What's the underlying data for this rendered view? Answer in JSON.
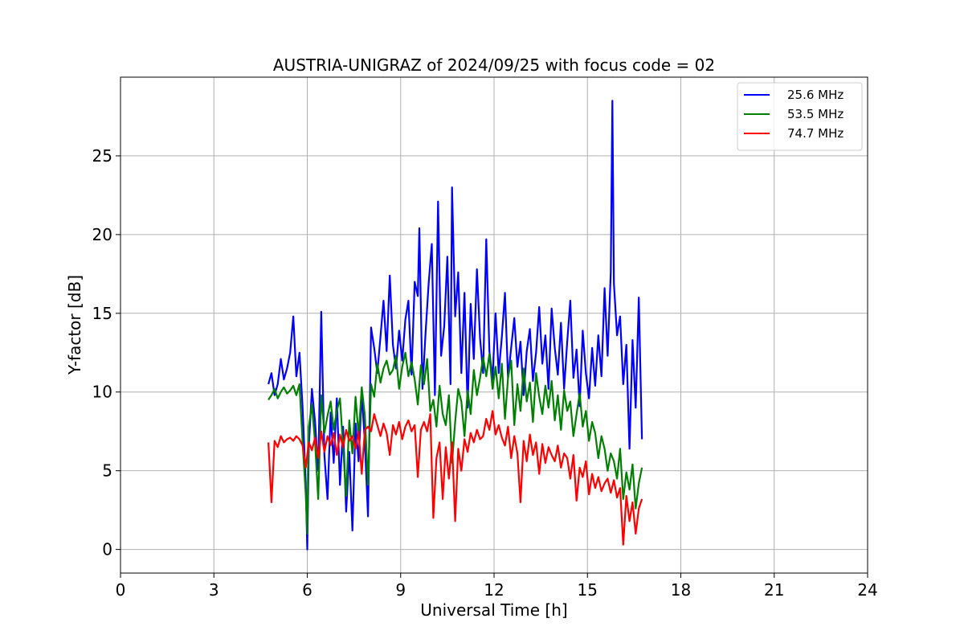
{
  "chart_data": {
    "type": "line",
    "title": "AUSTRIA-UNIGRAZ of 2024/09/25 with focus code = 02",
    "xlabel": "Universal Time [h]",
    "ylabel": "Y-factor [dB]",
    "xlim": [
      0,
      24
    ],
    "ylim": [
      -1.5,
      30
    ],
    "xticks": [
      0,
      3,
      6,
      9,
      12,
      15,
      18,
      21,
      24
    ],
    "yticks": [
      0,
      5,
      10,
      15,
      20,
      25
    ],
    "grid": true,
    "legend_position": "top-right",
    "series": [
      {
        "name": "25.6 MHz",
        "color": "#0000ff",
        "x": [
          4.75,
          4.85,
          4.95,
          5.05,
          5.15,
          5.25,
          5.35,
          5.45,
          5.55,
          5.65,
          5.75,
          5.85,
          5.95,
          6.0,
          6.05,
          6.15,
          6.25,
          6.35,
          6.45,
          6.55,
          6.65,
          6.75,
          6.85,
          6.95,
          7.05,
          7.15,
          7.25,
          7.35,
          7.45,
          7.55,
          7.65,
          7.75,
          7.85,
          7.95,
          8.05,
          8.15,
          8.25,
          8.35,
          8.45,
          8.55,
          8.65,
          8.75,
          8.85,
          8.95,
          9.05,
          9.15,
          9.25,
          9.35,
          9.45,
          9.55,
          9.6,
          9.7,
          9.8,
          9.9,
          10.0,
          10.1,
          10.2,
          10.3,
          10.4,
          10.5,
          10.6,
          10.65,
          10.75,
          10.85,
          10.95,
          11.05,
          11.15,
          11.25,
          11.35,
          11.45,
          11.55,
          11.65,
          11.75,
          11.85,
          11.95,
          12.05,
          12.15,
          12.25,
          12.35,
          12.45,
          12.55,
          12.65,
          12.75,
          12.85,
          12.95,
          13.05,
          13.15,
          13.25,
          13.35,
          13.45,
          13.55,
          13.65,
          13.75,
          13.85,
          13.95,
          14.05,
          14.15,
          14.25,
          14.35,
          14.45,
          14.55,
          14.65,
          14.75,
          14.85,
          14.95,
          15.05,
          15.15,
          15.25,
          15.35,
          15.45,
          15.55,
          15.65,
          15.75,
          15.8,
          15.85,
          15.95,
          16.05,
          16.15,
          16.25,
          16.35,
          16.45,
          16.55,
          16.65,
          16.75
        ],
        "y": [
          10.5,
          11.2,
          9.8,
          10.5,
          12.1,
          10.8,
          11.5,
          12.5,
          14.8,
          11.0,
          12.5,
          9.0,
          4.2,
          0.0,
          6.5,
          10.2,
          8.1,
          5.0,
          15.1,
          6.0,
          3.2,
          8.7,
          5.5,
          9.6,
          4.1,
          7.8,
          2.4,
          6.2,
          1.2,
          8.0,
          5.6,
          9.9,
          6.8,
          2.1,
          14.1,
          12.8,
          11.2,
          13.5,
          15.8,
          12.6,
          17.4,
          13.0,
          11.5,
          13.9,
          12.0,
          14.6,
          15.8,
          11.1,
          17.0,
          16.1,
          20.4,
          10.2,
          13.8,
          16.9,
          19.4,
          9.8,
          22.1,
          12.3,
          14.2,
          18.6,
          10.5,
          23.0,
          14.8,
          17.6,
          11.2,
          16.3,
          9.0,
          15.6,
          12.1,
          17.8,
          13.4,
          11.2,
          19.7,
          12.6,
          10.8,
          15.0,
          11.2,
          13.5,
          16.3,
          10.9,
          12.8,
          14.7,
          11.6,
          13.2,
          9.8,
          12.6,
          14.0,
          10.7,
          12.5,
          15.4,
          11.8,
          13.6,
          10.2,
          15.3,
          12.8,
          11.1,
          14.4,
          10.2,
          13.2,
          15.8,
          10.9,
          12.7,
          9.1,
          13.9,
          11.2,
          9.6,
          12.8,
          10.4,
          13.6,
          11.0,
          16.6,
          12.3,
          17.6,
          28.5,
          16.9,
          13.6,
          14.8,
          10.5,
          13.0,
          6.4,
          13.3,
          9.0,
          16.0,
          7.0
        ],
        "lw": 2.2
      },
      {
        "name": "53.5 MHz",
        "color": "#008000",
        "x": [
          4.75,
          4.85,
          4.95,
          5.05,
          5.15,
          5.25,
          5.35,
          5.45,
          5.55,
          5.65,
          5.75,
          5.85,
          5.95,
          6.0,
          6.05,
          6.15,
          6.25,
          6.35,
          6.45,
          6.55,
          6.65,
          6.75,
          6.85,
          6.95,
          7.05,
          7.15,
          7.25,
          7.35,
          7.45,
          7.55,
          7.65,
          7.75,
          7.85,
          7.95,
          8.05,
          8.15,
          8.25,
          8.35,
          8.45,
          8.55,
          8.65,
          8.75,
          8.85,
          8.95,
          9.05,
          9.15,
          9.25,
          9.35,
          9.45,
          9.55,
          9.65,
          9.75,
          9.85,
          9.95,
          10.05,
          10.15,
          10.25,
          10.35,
          10.45,
          10.55,
          10.65,
          10.75,
          10.85,
          10.95,
          11.05,
          11.15,
          11.25,
          11.35,
          11.45,
          11.55,
          11.65,
          11.75,
          11.85,
          11.95,
          12.05,
          12.15,
          12.25,
          12.35,
          12.45,
          12.55,
          12.65,
          12.75,
          12.85,
          12.95,
          13.05,
          13.15,
          13.25,
          13.35,
          13.45,
          13.55,
          13.65,
          13.75,
          13.85,
          13.95,
          14.05,
          14.15,
          14.25,
          14.35,
          14.45,
          14.55,
          14.65,
          14.75,
          14.85,
          14.95,
          15.05,
          15.15,
          15.25,
          15.35,
          15.45,
          15.55,
          15.65,
          15.75,
          15.85,
          15.95,
          16.05,
          16.15,
          16.25,
          16.35,
          16.45,
          16.55,
          16.65,
          16.75
        ],
        "y": [
          9.5,
          9.8,
          10.2,
          9.6,
          10.0,
          10.3,
          9.9,
          10.1,
          10.4,
          9.8,
          10.5,
          6.8,
          3.5,
          1.0,
          7.8,
          9.2,
          6.8,
          3.2,
          9.8,
          7.4,
          8.5,
          9.4,
          7.6,
          8.8,
          9.6,
          6.5,
          3.4,
          8.2,
          6.1,
          9.7,
          7.2,
          10.3,
          8.5,
          4.1,
          10.5,
          9.7,
          11.8,
          10.6,
          11.5,
          12.0,
          11.1,
          11.4,
          12.3,
          10.2,
          11.6,
          12.5,
          11.0,
          11.9,
          10.8,
          9.2,
          11.7,
          10.5,
          12.1,
          8.8,
          9.5,
          7.8,
          10.4,
          8.6,
          7.9,
          9.8,
          5.5,
          8.1,
          10.2,
          9.4,
          7.2,
          10.1,
          8.6,
          11.4,
          9.8,
          10.9,
          12.2,
          11.0,
          12.4,
          10.2,
          11.6,
          9.6,
          11.8,
          8.3,
          10.9,
          12.0,
          7.9,
          10.5,
          8.8,
          11.5,
          9.4,
          10.6,
          8.1,
          11.2,
          9.7,
          8.6,
          10.4,
          9.0,
          10.7,
          8.2,
          9.8,
          7.6,
          10.1,
          8.8,
          9.4,
          7.2,
          8.6,
          9.9,
          7.8,
          8.8,
          6.9,
          8.1,
          7.4,
          5.8,
          7.2,
          6.4,
          5.0,
          6.1,
          5.6,
          4.5,
          6.4,
          3.2,
          4.9,
          3.8,
          5.4,
          2.6,
          4.2,
          5.2
        ],
        "lw": 2.2
      },
      {
        "name": "74.7 MHz",
        "color": "#ff0000",
        "x": [
          4.75,
          4.85,
          4.95,
          5.05,
          5.15,
          5.25,
          5.35,
          5.45,
          5.55,
          5.65,
          5.75,
          5.85,
          5.95,
          6.05,
          6.15,
          6.25,
          6.35,
          6.45,
          6.55,
          6.65,
          6.75,
          6.85,
          6.95,
          7.05,
          7.15,
          7.25,
          7.35,
          7.45,
          7.55,
          7.65,
          7.75,
          7.85,
          7.95,
          8.05,
          8.15,
          8.25,
          8.35,
          8.45,
          8.55,
          8.65,
          8.75,
          8.85,
          8.95,
          9.05,
          9.15,
          9.25,
          9.35,
          9.45,
          9.55,
          9.65,
          9.75,
          9.85,
          9.95,
          10.05,
          10.15,
          10.25,
          10.35,
          10.45,
          10.55,
          10.65,
          10.75,
          10.85,
          10.95,
          11.05,
          11.15,
          11.25,
          11.35,
          11.45,
          11.55,
          11.65,
          11.75,
          11.85,
          11.95,
          12.05,
          12.15,
          12.25,
          12.35,
          12.45,
          12.55,
          12.65,
          12.75,
          12.85,
          12.95,
          13.05,
          13.15,
          13.25,
          13.35,
          13.45,
          13.55,
          13.65,
          13.75,
          13.85,
          13.95,
          14.05,
          14.15,
          14.25,
          14.35,
          14.45,
          14.55,
          14.65,
          14.75,
          14.85,
          14.95,
          15.05,
          15.15,
          15.25,
          15.35,
          15.45,
          15.55,
          15.65,
          15.75,
          15.85,
          15.95,
          16.05,
          16.15,
          16.25,
          16.35,
          16.45,
          16.55,
          16.65,
          16.75
        ],
        "y": [
          6.8,
          3.0,
          6.9,
          6.5,
          7.2,
          6.8,
          7.0,
          7.1,
          6.9,
          7.2,
          7.0,
          6.6,
          5.2,
          6.8,
          6.3,
          7.1,
          5.8,
          7.5,
          6.2,
          7.2,
          6.6,
          7.4,
          6.0,
          7.3,
          6.5,
          7.6,
          6.9,
          7.2,
          6.4,
          7.5,
          4.8,
          7.6,
          7.8,
          7.5,
          8.6,
          7.9,
          7.2,
          8.0,
          7.4,
          6.0,
          7.9,
          7.3,
          8.1,
          7.0,
          7.8,
          8.2,
          7.5,
          7.9,
          4.6,
          7.6,
          8.1,
          7.5,
          8.6,
          2.0,
          5.8,
          6.8,
          3.2,
          6.5,
          4.5,
          6.8,
          1.8,
          6.4,
          5.0,
          7.0,
          6.2,
          7.4,
          6.8,
          7.6,
          7.0,
          7.2,
          8.3,
          7.6,
          8.8,
          7.3,
          7.9,
          7.1,
          6.6,
          7.8,
          5.8,
          7.2,
          6.1,
          3.0,
          6.9,
          5.6,
          7.3,
          6.0,
          6.8,
          4.8,
          6.7,
          5.5,
          6.5,
          6.0,
          5.6,
          6.6,
          5.2,
          6.1,
          5.8,
          4.5,
          6.0,
          3.1,
          5.2,
          4.6,
          5.6,
          3.5,
          4.8,
          3.9,
          4.6,
          3.7,
          4.2,
          4.5,
          3.6,
          4.4,
          3.3,
          3.9,
          0.3,
          3.4,
          1.8,
          3.0,
          1.0,
          2.6,
          3.2
        ],
        "lw": 2.2
      }
    ]
  }
}
